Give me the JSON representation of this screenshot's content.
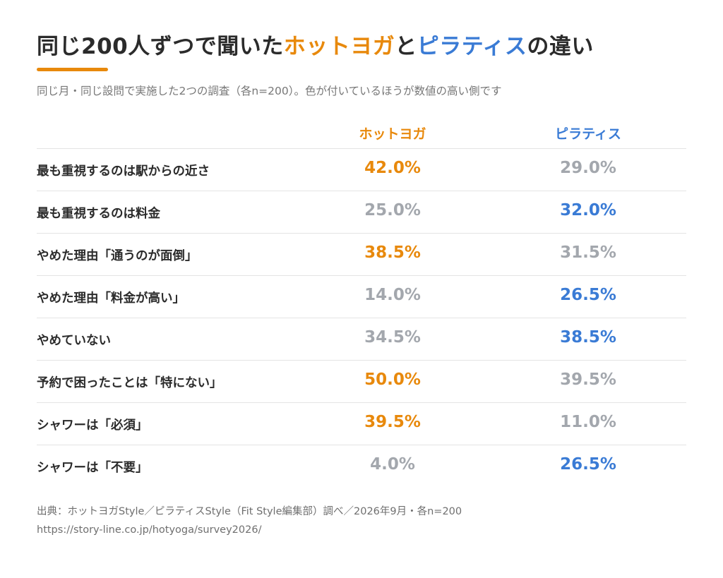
{
  "title": {
    "prefix": "同じ200人ずつで聞いた",
    "hot": "ホットヨガ",
    "mid": "と",
    "pil": "ピラティス",
    "suffix": "の違い"
  },
  "subtitle": "同じ月・同じ設問で実施した2つの調査（各n=200）。色が付いているほうが数値の高い側です",
  "colors": {
    "hot_yoga": "#e8890c",
    "pilates": "#3a7bd5",
    "muted": "#a3a7ad"
  },
  "chart_data": {
    "type": "table",
    "columns": [
      "ホットヨガ",
      "ピラティス"
    ],
    "rows": [
      {
        "label": "最も重視するのは駅からの近さ",
        "hot_yoga": "42.0%",
        "pilates": "29.0%",
        "higher": "hot_yoga"
      },
      {
        "label": "最も重視するのは料金",
        "hot_yoga": "25.0%",
        "pilates": "32.0%",
        "higher": "pilates"
      },
      {
        "label": "やめた理由「通うのが面倒」",
        "hot_yoga": "38.5%",
        "pilates": "31.5%",
        "higher": "hot_yoga"
      },
      {
        "label": "やめた理由「料金が高い」",
        "hot_yoga": "14.0%",
        "pilates": "26.5%",
        "higher": "pilates"
      },
      {
        "label": "やめていない",
        "hot_yoga": "34.5%",
        "pilates": "38.5%",
        "higher": "pilates"
      },
      {
        "label": "予約で困ったことは「特にない」",
        "hot_yoga": "50.0%",
        "pilates": "39.5%",
        "higher": "hot_yoga"
      },
      {
        "label": "シャワーは「必須」",
        "hot_yoga": "39.5%",
        "pilates": "11.0%",
        "higher": "hot_yoga"
      },
      {
        "label": "シャワーは「不要」",
        "hot_yoga": "4.0%",
        "pilates": "26.5%",
        "higher": "pilates"
      }
    ]
  },
  "source": {
    "line1": "出典：ホットヨガStyle／ピラティスStyle（Fit Style編集部）調べ／2026年9月・各n=200",
    "line2": "https://story-line.co.jp/hotyoga/survey2026/"
  }
}
